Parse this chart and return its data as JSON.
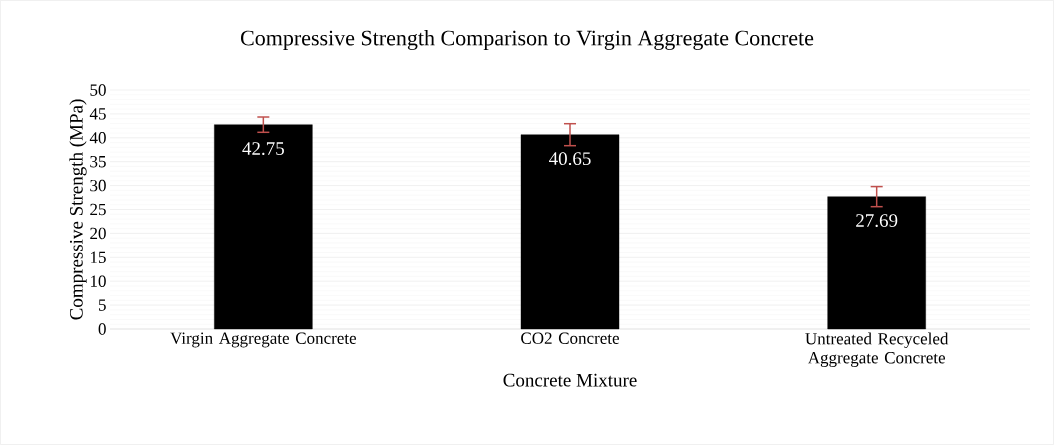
{
  "chart_data": {
    "type": "bar",
    "title": "Compressive Strength Comparison to Virgin Aggregate Concrete",
    "xlabel": "Concrete Mixture",
    "ylabel": "Compressive Strength (MPa)",
    "categories": [
      "Virgin Aggregate Concrete",
      "CO2 Concrete",
      "Untreated Recyceled Aggregate Concrete"
    ],
    "values": [
      42.75,
      40.65,
      27.69
    ],
    "errors": [
      1.6,
      2.3,
      2.1
    ],
    "color": "#000000",
    "ylim": [
      0,
      50
    ],
    "yticks": [
      0,
      5,
      10,
      15,
      20,
      25,
      30,
      35,
      40,
      45,
      50
    ],
    "grid": "y",
    "data_labels": true
  }
}
